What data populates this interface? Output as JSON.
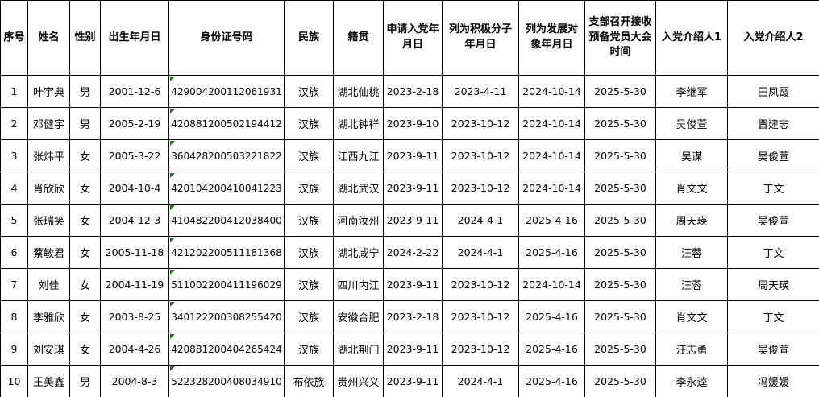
{
  "table": {
    "colors": {
      "border": "#000000",
      "background": "#ffffff",
      "text": "#000000",
      "flag_green": "#1e7e1e"
    },
    "columns": [
      {
        "key": "index",
        "label": "序号"
      },
      {
        "key": "name",
        "label": "姓名"
      },
      {
        "key": "gender",
        "label": "性别"
      },
      {
        "key": "birthdate",
        "label": "出生年月日"
      },
      {
        "key": "id_number",
        "label": "身份证号码"
      },
      {
        "key": "ethnicity",
        "label": "民族"
      },
      {
        "key": "native_place",
        "label": "籍贯"
      },
      {
        "key": "apply_date",
        "label": "申请入党年月日"
      },
      {
        "key": "activist_date",
        "label": "列为积极分子　年月日"
      },
      {
        "key": "development_date",
        "label": "列为发展对象年月日"
      },
      {
        "key": "meeting_date",
        "label": "支部召开接收预备党员大会时间"
      },
      {
        "key": "introducer1",
        "label": "入党介绍人1"
      },
      {
        "key": "introducer2",
        "label": "入党介绍人2"
      }
    ],
    "rows": [
      [
        "1",
        "叶宇典",
        "男",
        "2001-12-6",
        "429004200112061931",
        "汉族",
        "湖北仙桃",
        "2023-2-18",
        "2023-4-11",
        "2024-10-14",
        "2025-5-30",
        "李继军",
        "田凤霞"
      ],
      [
        "2",
        "邓健宇",
        "男",
        "2005-2-19",
        "420881200502194412",
        "汉族",
        "湖北钟祥",
        "2023-9-10",
        "2023-10-12",
        "2024-10-14",
        "2025-5-30",
        "吴俊萱",
        "晋建志"
      ],
      [
        "3",
        "张炜平",
        "女",
        "2005-3-22",
        "360428200503221822",
        "汉族",
        "江西九江",
        "2023-9-11",
        "2023-10-12",
        "2024-10-14",
        "2025-5-30",
        "吴谋",
        "吴俊萱"
      ],
      [
        "4",
        "肖欣欣",
        "女",
        "2004-10-4",
        "420104200410041223",
        "汉族",
        "湖北武汉",
        "2023-9-11",
        "2023-10-12",
        "2024-10-14",
        "2025-5-30",
        "肖文文",
        "丁文"
      ],
      [
        "5",
        "张瑞笑",
        "女",
        "2004-12-3",
        "410482200412038400",
        "汉族",
        "河南汝州",
        "2023-9-11",
        "2024-4-1",
        "2025-4-16",
        "2025-5-30",
        "周天瑛",
        "吴俊萱"
      ],
      [
        "6",
        "蔡敏君",
        "女",
        "2005-11-18",
        "421202200511181368",
        "汉族",
        "湖北咸宁",
        "2024-2-22",
        "2024-4-1",
        "2025-4-16",
        "2025-5-30",
        "汪蓉",
        "丁文"
      ],
      [
        "7",
        "刘佳",
        "女",
        "2004-11-19",
        "511002200411196029",
        "汉族",
        "四川内江",
        "2023-9-11",
        "2023-10-12",
        "2024-10-14",
        "2025-5-30",
        "汪蓉",
        "周天瑛"
      ],
      [
        "8",
        "李雅欣",
        "女",
        "2003-8-25",
        "340122200308255420",
        "汉族",
        "安徽合肥",
        "2023-2-18",
        "2023-10-12",
        "2025-4-16",
        "2025-5-30",
        "肖文文",
        "丁文"
      ],
      [
        "9",
        "刘安琪",
        "女",
        "2004-4-26",
        "420881200404265424",
        "汉族",
        "湖北荆门",
        "2023-9-11",
        "2023-10-12",
        "2025-4-16",
        "2025-5-30",
        "汪志勇",
        "吴俊萱"
      ],
      [
        "10",
        "王美鑫",
        "男",
        "2004-8-3",
        "522328200408034910",
        "布依族",
        "贵州兴义",
        "2023-9-11",
        "2024-4-1",
        "2025-4-16",
        "2025-5-30",
        "李永逵",
        "冯媛媛"
      ]
    ]
  }
}
